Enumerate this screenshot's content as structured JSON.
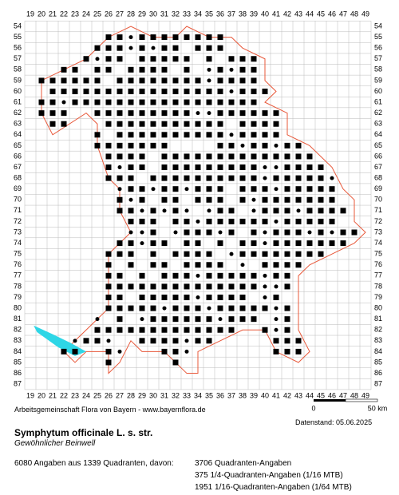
{
  "map": {
    "columns": [
      19,
      20,
      21,
      22,
      23,
      24,
      25,
      26,
      27,
      28,
      29,
      30,
      31,
      32,
      33,
      34,
      35,
      36,
      37,
      38,
      39,
      40,
      41,
      42,
      43,
      44,
      45,
      46,
      47,
      48,
      49
    ],
    "rows": [
      54,
      55,
      56,
      57,
      58,
      59,
      60,
      61,
      62,
      63,
      64,
      65,
      66,
      67,
      68,
      69,
      70,
      71,
      72,
      73,
      74,
      75,
      76,
      77,
      78,
      79,
      80,
      81,
      82,
      83,
      84,
      85,
      86,
      87
    ],
    "credit": "Arbeitsgemeinschaft Flora von Bayern - www.bayernflora.de",
    "scale_start": "0",
    "scale_end": "50 km",
    "date": "Datenstand: 05.06.2025"
  },
  "species": {
    "name": "Symphytum officinale L. s. str.",
    "common_name": "Gewöhnlicher Beinwell"
  },
  "summary": {
    "total": "6080 Angaben aus 1339 Quadranten, davon:",
    "lines": [
      "3706 Quadranten-Angaben",
      "375 1/4-Quadranten-Angaben (1/16 MTB)",
      "1951 1/16-Quadranten-Angaben (1/64 MTB)"
    ]
  }
}
